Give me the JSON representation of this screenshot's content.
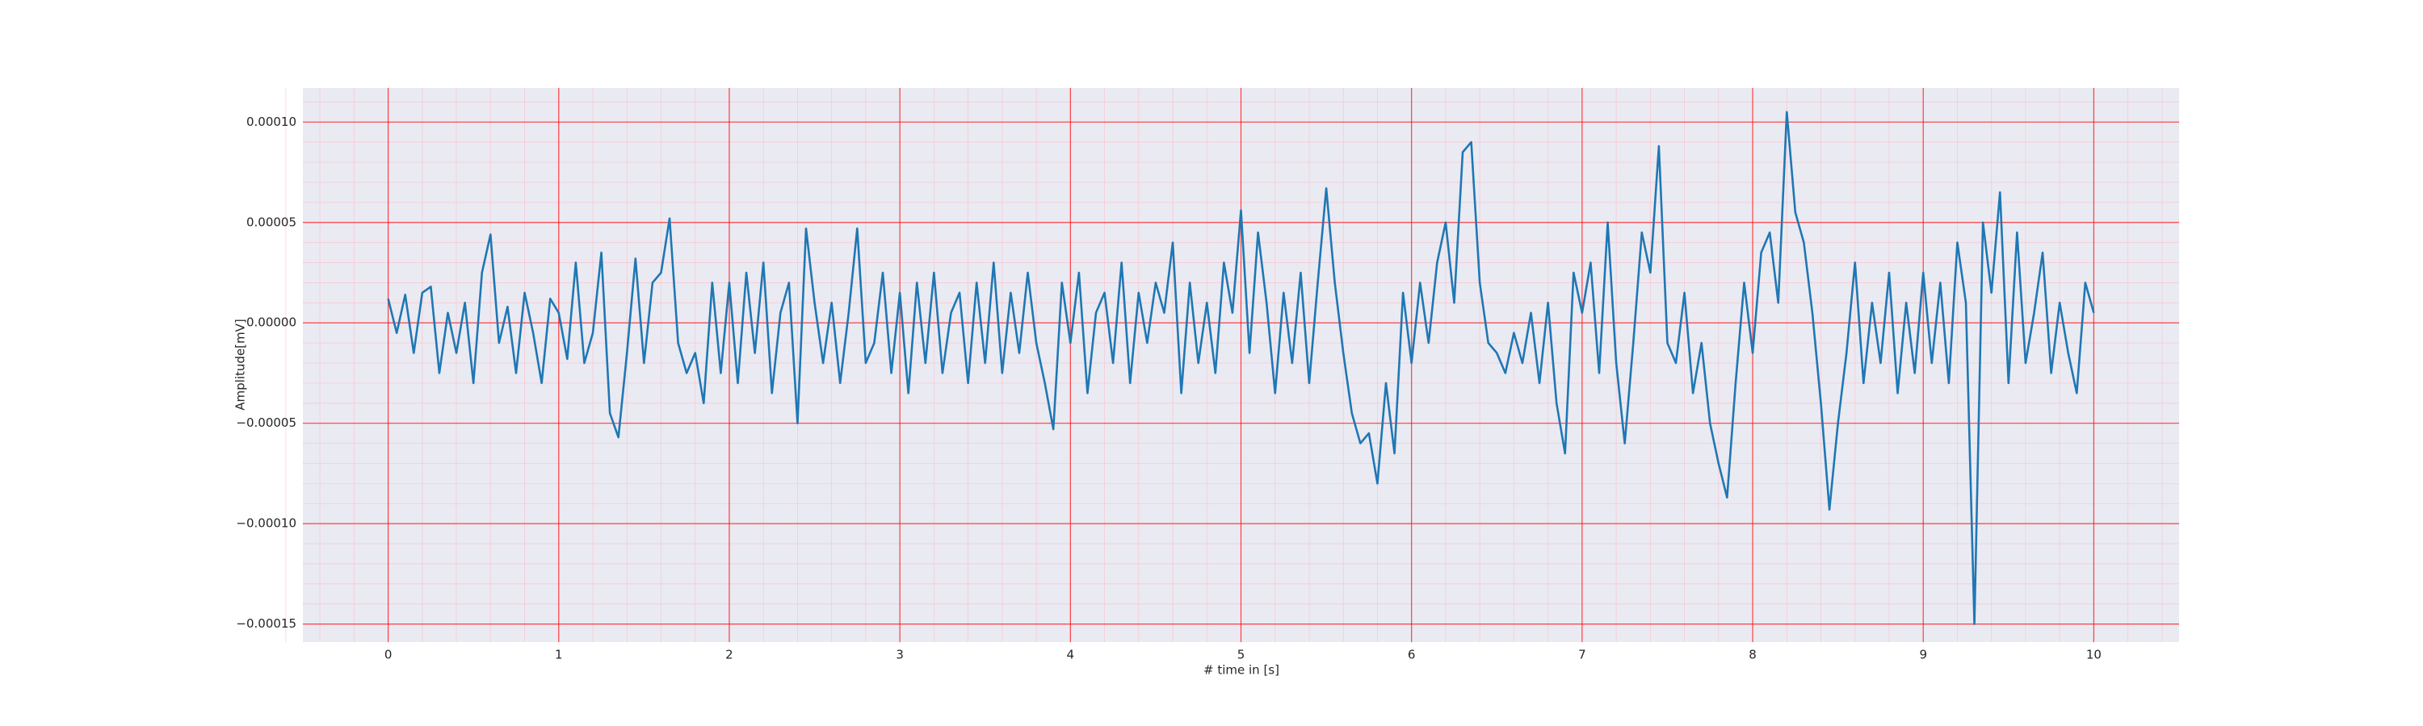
{
  "chart_data": {
    "type": "line",
    "xlabel": "# time in [s]",
    "ylabel": "Amplitude[mV]",
    "xlim": [
      -0.5,
      10.5
    ],
    "ylim": [
      -0.000159,
      0.000117
    ],
    "xticks": [
      0,
      1,
      2,
      3,
      4,
      5,
      6,
      7,
      8,
      9,
      10
    ],
    "yticks": [
      {
        "value": 0.0001,
        "label": "0.00010"
      },
      {
        "value": 5e-05,
        "label": "0.00005"
      },
      {
        "value": 0,
        "label": "0.00000"
      },
      {
        "value": -5e-05,
        "label": "−0.00005"
      },
      {
        "value": -0.0001,
        "label": "−0.00010"
      },
      {
        "value": -0.00015,
        "label": "−0.00015"
      }
    ],
    "grid": true,
    "grid_color": "#ff0000",
    "minor_grid_color": "#ffb6c1",
    "background": "#eaeaf2",
    "x": [
      0,
      0.05,
      0.1,
      0.15,
      0.2,
      0.25,
      0.3,
      0.35,
      0.4,
      0.45,
      0.5,
      0.55,
      0.6,
      0.65,
      0.7,
      0.75,
      0.8,
      0.85,
      0.9,
      0.95,
      1,
      1.05,
      1.1,
      1.15,
      1.2,
      1.25,
      1.3,
      1.35,
      1.4,
      1.45,
      1.5,
      1.55,
      1.6,
      1.65,
      1.7,
      1.75,
      1.8,
      1.85,
      1.9,
      1.95,
      2,
      2.05,
      2.1,
      2.15,
      2.2,
      2.25,
      2.3,
      2.35,
      2.4,
      2.45,
      2.5,
      2.55,
      2.6,
      2.65,
      2.7,
      2.75,
      2.8,
      2.85,
      2.9,
      2.95,
      3,
      3.05,
      3.1,
      3.15,
      3.2,
      3.25,
      3.3,
      3.35,
      3.4,
      3.45,
      3.5,
      3.55,
      3.6,
      3.65,
      3.7,
      3.75,
      3.8,
      3.85,
      3.9,
      3.95,
      4,
      4.05,
      4.1,
      4.15,
      4.2,
      4.25,
      4.3,
      4.35,
      4.4,
      4.45,
      4.5,
      4.55,
      4.6,
      4.65,
      4.7,
      4.75,
      4.8,
      4.85,
      4.9,
      4.95,
      5,
      5.05,
      5.1,
      5.15,
      5.2,
      5.25,
      5.3,
      5.35,
      5.4,
      5.45,
      5.5,
      5.55,
      5.6,
      5.65,
      5.7,
      5.75,
      5.8,
      5.85,
      5.9,
      5.95,
      6,
      6.05,
      6.1,
      6.15,
      6.2,
      6.25,
      6.3,
      6.35,
      6.4,
      6.45,
      6.5,
      6.55,
      6.6,
      6.65,
      6.7,
      6.75,
      6.8,
      6.85,
      6.9,
      6.95,
      7,
      7.05,
      7.1,
      7.15,
      7.2,
      7.25,
      7.3,
      7.35,
      7.4,
      7.45,
      7.5,
      7.55,
      7.6,
      7.65,
      7.7,
      7.75,
      7.8,
      7.85,
      7.9,
      7.95,
      8,
      8.05,
      8.1,
      8.15,
      8.2,
      8.25,
      8.3,
      8.35,
      8.4,
      8.45,
      8.5,
      8.55,
      8.6,
      8.65,
      8.7,
      8.75,
      8.8,
      8.85,
      8.9,
      8.95,
      9,
      9.05,
      9.1,
      9.15,
      9.2,
      9.25,
      9.3,
      9.35,
      9.4,
      9.45,
      9.5,
      9.55,
      9.6,
      9.65,
      9.7,
      9.75,
      9.8,
      9.85,
      9.9,
      9.95,
      10
    ],
    "series": [
      {
        "color": "#1f77b4",
        "values": [
          1.2e-05,
          -5e-06,
          1.4e-05,
          -1.5e-05,
          1.5e-05,
          1.8e-05,
          -2.5e-05,
          5e-06,
          -1.5e-05,
          1e-05,
          -3e-05,
          2.5e-05,
          4.4e-05,
          -1e-05,
          8e-06,
          -2.5e-05,
          1.5e-05,
          -5e-06,
          -3e-05,
          1.2e-05,
          5e-06,
          -1.8e-05,
          3e-05,
          -2e-05,
          -5e-06,
          3.5e-05,
          -4.5e-05,
          -5.7e-05,
          -1.5e-05,
          3.2e-05,
          -2e-05,
          2e-05,
          2.5e-05,
          5.2e-05,
          -1e-05,
          -2.5e-05,
          -1.5e-05,
          -4e-05,
          2e-05,
          -2.5e-05,
          2e-05,
          -3e-05,
          2.5e-05,
          -1.5e-05,
          3e-05,
          -3.5e-05,
          5e-06,
          2e-05,
          -5e-05,
          4.7e-05,
          1e-05,
          -2e-05,
          1e-05,
          -3e-05,
          5e-06,
          4.7e-05,
          -2e-05,
          -1e-05,
          2.5e-05,
          -2.5e-05,
          1.5e-05,
          -3.5e-05,
          2e-05,
          -2e-05,
          2.5e-05,
          -2.5e-05,
          5e-06,
          1.5e-05,
          -3e-05,
          2e-05,
          -2e-05,
          3e-05,
          -2.5e-05,
          1.5e-05,
          -1.5e-05,
          2.5e-05,
          -1e-05,
          -3e-05,
          -5.3e-05,
          2e-05,
          -1e-05,
          2.5e-05,
          -3.5e-05,
          5e-06,
          1.5e-05,
          -2e-05,
          3e-05,
          -3e-05,
          1.5e-05,
          -1e-05,
          2e-05,
          5e-06,
          4e-05,
          -3.5e-05,
          2e-05,
          -2e-05,
          1e-05,
          -2.5e-05,
          3e-05,
          5e-06,
          5.6e-05,
          -1.5e-05,
          4.5e-05,
          1e-05,
          -3.5e-05,
          1.5e-05,
          -2e-05,
          2.5e-05,
          -3e-05,
          2e-05,
          6.7e-05,
          2e-05,
          -1.5e-05,
          -4.5e-05,
          -6e-05,
          -5.5e-05,
          -8e-05,
          -3e-05,
          -6.5e-05,
          1.5e-05,
          -2e-05,
          2e-05,
          -1e-05,
          3e-05,
          5e-05,
          1e-05,
          8.5e-05,
          9e-05,
          2e-05,
          -1e-05,
          -1.5e-05,
          -2.5e-05,
          -5e-06,
          -2e-05,
          5e-06,
          -3e-05,
          1e-05,
          -4e-05,
          -6.5e-05,
          2.5e-05,
          5e-06,
          3e-05,
          -2.5e-05,
          5e-05,
          -2e-05,
          -6e-05,
          -1e-05,
          4.5e-05,
          2.5e-05,
          8.8e-05,
          -1e-05,
          -2e-05,
          1.5e-05,
          -3.5e-05,
          -1e-05,
          -5e-05,
          -7e-05,
          -8.7e-05,
          -3e-05,
          2e-05,
          -1.5e-05,
          3.5e-05,
          4.5e-05,
          1e-05,
          0.000105,
          5.5e-05,
          4e-05,
          5e-06,
          -4e-05,
          -9.3e-05,
          -5e-05,
          -1.5e-05,
          3e-05,
          -3e-05,
          1e-05,
          -2e-05,
          2.5e-05,
          -3.5e-05,
          1e-05,
          -2.5e-05,
          2.5e-05,
          -2e-05,
          2e-05,
          -3e-05,
          4e-05,
          1e-05,
          -0.00015,
          5e-05,
          1.5e-05,
          6.5e-05,
          -3e-05,
          4.5e-05,
          -2e-05,
          5e-06,
          3.5e-05,
          -2.5e-05,
          1e-05,
          -1.5e-05,
          -3.5e-05,
          2e-05,
          5e-06
        ]
      }
    ]
  }
}
